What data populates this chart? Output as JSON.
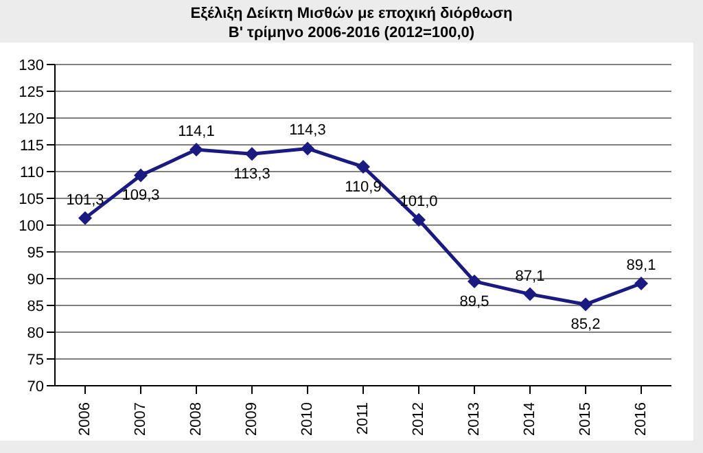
{
  "chart_data": {
    "type": "line",
    "title": "Εξέλιξη Δείκτη Μισθών με εποχική διόρθωση",
    "subtitle": "Β' τρίμηνο 2006-2016 (2012=100,0)",
    "categories": [
      "2006",
      "2007",
      "2008",
      "2009",
      "2010",
      "2011",
      "2012",
      "2013",
      "2014",
      "2015",
      "2016"
    ],
    "series": [
      {
        "color": "#1a1a80",
        "values": [
          101.3,
          109.3,
          114.1,
          113.3,
          114.3,
          110.9,
          101.0,
          89.5,
          87.1,
          85.2,
          89.1
        ],
        "value_labels": [
          "101,3",
          "109,3",
          "114,1",
          "113,3",
          "114,3",
          "110,9",
          "101,0",
          "89,5",
          "87,1",
          "85,2",
          "89,1"
        ]
      }
    ],
    "ylim": [
      70,
      130
    ],
    "yticks": [
      70,
      75,
      80,
      85,
      90,
      95,
      100,
      105,
      110,
      115,
      120,
      125,
      130
    ],
    "grid": "y",
    "marker": "diamond",
    "line_style": "solid",
    "legend": false
  }
}
